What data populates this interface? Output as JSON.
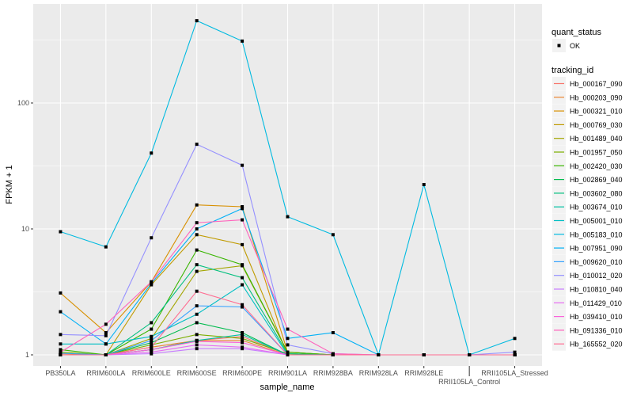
{
  "chart_data": {
    "type": "line",
    "title": "",
    "xlabel": "sample_name",
    "ylabel": "FPKM + 1",
    "y_scale": "log10",
    "ylim": [
      0.95,
      600
    ],
    "y_ticks": [
      1,
      10,
      100
    ],
    "y_tick_labels": [
      "1",
      "10",
      "100"
    ],
    "grid": true,
    "legend_position": "right",
    "categories": [
      "PB350LA",
      "RRIM600LA",
      "RRIM600LE",
      "RRIM600SE",
      "RRIM600PE",
      "RRIM901LA",
      "RRIM928BA",
      "RRIM928LA",
      "RRIM928LE",
      "RRII105LA_Control",
      "RRII105LA_Stressed"
    ],
    "point_legend": {
      "title": "quant_status",
      "entries": [
        "OK"
      ]
    },
    "line_legend_title": "tracking_id",
    "series": [
      {
        "name": "Hb_000167_090",
        "color": "#F8766D",
        "values": [
          1,
          1,
          1.1,
          1.3,
          1.4,
          1,
          1,
          1,
          1,
          1,
          1
        ]
      },
      {
        "name": "Hb_000203_090",
        "color": "#EA8331",
        "values": [
          1.02,
          1,
          1.15,
          1.3,
          1.3,
          1,
          1,
          1,
          1,
          1,
          1
        ]
      },
      {
        "name": "Hb_000321_010",
        "color": "#D89000",
        "values": [
          3.1,
          1.5,
          3.8,
          15.5,
          15,
          1.05,
          1,
          1,
          1,
          1,
          1
        ]
      },
      {
        "name": "Hb_000769_030",
        "color": "#C09B00",
        "values": [
          1,
          1,
          3.6,
          9,
          7.5,
          1,
          1,
          1,
          1,
          1,
          1
        ]
      },
      {
        "name": "Hb_001489_040",
        "color": "#A3A500",
        "values": [
          1,
          1,
          1.35,
          4.6,
          5.1,
          1.05,
          1,
          1,
          1,
          1,
          1
        ]
      },
      {
        "name": "Hb_001957_050",
        "color": "#7CAE00",
        "values": [
          1.05,
          1,
          1.2,
          1.45,
          1.35,
          1.02,
          1,
          1,
          1,
          1,
          1
        ]
      },
      {
        "name": "Hb_002420_030",
        "color": "#39B600",
        "values": [
          1.1,
          1,
          1.6,
          6.8,
          5.2,
          1.05,
          1,
          1,
          1,
          1,
          1
        ]
      },
      {
        "name": "Hb_002869_040",
        "color": "#00BB4E",
        "values": [
          1,
          1,
          1.25,
          1.8,
          1.5,
          1,
          1,
          1,
          1,
          1,
          1
        ]
      },
      {
        "name": "Hb_003602_080",
        "color": "#00BF7D",
        "values": [
          1,
          1,
          1.8,
          5.2,
          4.1,
          1.02,
          1,
          1,
          1,
          1,
          1
        ]
      },
      {
        "name": "Hb_003674_010",
        "color": "#00C1A3",
        "values": [
          1,
          1,
          1.1,
          1.3,
          1.45,
          1,
          1,
          1,
          1,
          1,
          1
        ]
      },
      {
        "name": "Hb_005001_010",
        "color": "#00BFC4",
        "values": [
          1.22,
          1.22,
          1.4,
          2.1,
          3.6,
          1,
          1,
          1,
          1,
          1,
          1
        ]
      },
      {
        "name": "Hb_005183_010",
        "color": "#00BAE0",
        "values": [
          9.5,
          7.2,
          40,
          450,
          310,
          12.5,
          9,
          1,
          22.5,
          1,
          1.35
        ]
      },
      {
        "name": "Hb_007951_090",
        "color": "#00B0F6",
        "values": [
          2.2,
          1.22,
          3.7,
          10,
          14.5,
          1.35,
          1.5,
          1,
          1,
          1,
          1
        ]
      },
      {
        "name": "Hb_009620_010",
        "color": "#35A2FF",
        "values": [
          1.03,
          1,
          1.3,
          2.45,
          2.4,
          1,
          1,
          1,
          1,
          1,
          1
        ]
      },
      {
        "name": "Hb_010012_020",
        "color": "#9590FF",
        "values": [
          1.45,
          1.42,
          8.5,
          47,
          32,
          1.2,
          1.02,
          1,
          1,
          1,
          1.05
        ]
      },
      {
        "name": "Hb_010810_040",
        "color": "#C77CFF",
        "values": [
          1,
          1,
          1.02,
          1.12,
          1.12,
          1,
          1,
          1,
          1,
          1,
          1
        ]
      },
      {
        "name": "Hb_011429_010",
        "color": "#E76BF3",
        "values": [
          1,
          1,
          1.05,
          1.2,
          1.15,
          1,
          1,
          1,
          1,
          1,
          1
        ]
      },
      {
        "name": "Hb_039410_010",
        "color": "#FA62DB",
        "values": [
          1,
          1,
          1.1,
          1.28,
          1.25,
          1,
          1,
          1,
          1,
          1,
          1
        ]
      },
      {
        "name": "Hb_091336_010",
        "color": "#FF62BC",
        "values": [
          1.05,
          1.75,
          3.8,
          11.2,
          11.8,
          1.6,
          1.02,
          1,
          1,
          1,
          1
        ]
      },
      {
        "name": "Hb_165552_020",
        "color": "#FF6C91",
        "values": [
          1,
          1,
          1.15,
          3.2,
          2.5,
          1,
          1,
          1,
          1,
          1,
          1
        ]
      }
    ]
  }
}
